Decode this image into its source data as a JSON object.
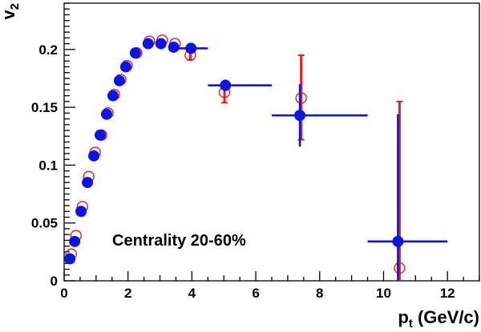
{
  "chart_data": {
    "type": "scatter",
    "title": "",
    "xlabel": "p",
    "xlabel_sub": "t",
    "xlabel_suffix": " (GeV/c)",
    "ylabel": "v",
    "ylabel_sub": "2",
    "xlim": [
      0,
      13
    ],
    "ylim": [
      0,
      0.24
    ],
    "x_ticks": [
      0,
      2,
      4,
      6,
      8,
      10,
      12
    ],
    "x_tick_labels": [
      "0",
      "2",
      "4",
      "6",
      "8",
      "10",
      "12"
    ],
    "y_ticks": [
      0,
      0.05,
      0.1,
      0.15,
      0.2
    ],
    "y_tick_labels": [
      "0",
      "0.05",
      "0.1",
      "0.15",
      "0.2"
    ],
    "grid": false,
    "annotation": "Centrality 20-60%",
    "colors": {
      "filled": "#0a14e6",
      "open": "#e61e1e"
    },
    "series": [
      {
        "marker": "filled-circle",
        "color": "#0a14e6",
        "points": [
          {
            "x": 0.18,
            "y": 0.019
          },
          {
            "x": 0.33,
            "y": 0.034
          },
          {
            "x": 0.53,
            "y": 0.06
          },
          {
            "x": 0.73,
            "y": 0.085
          },
          {
            "x": 0.93,
            "y": 0.108
          },
          {
            "x": 1.13,
            "y": 0.126
          },
          {
            "x": 1.33,
            "y": 0.144
          },
          {
            "x": 1.53,
            "y": 0.16
          },
          {
            "x": 1.73,
            "y": 0.173
          },
          {
            "x": 1.93,
            "y": 0.185
          },
          {
            "x": 2.23,
            "y": 0.197
          },
          {
            "x": 2.63,
            "y": 0.205
          },
          {
            "x": 3.03,
            "y": 0.205
          },
          {
            "x": 3.43,
            "y": 0.202
          },
          {
            "x": 3.97,
            "y": 0.201,
            "xerr": [
              0.47,
              0.53
            ]
          },
          {
            "x": 5.05,
            "y": 0.169,
            "xerr": [
              0.55,
              1.45
            ],
            "yerr": [
              0.005,
              0.005
            ]
          },
          {
            "x": 7.38,
            "y": 0.143,
            "xerr": [
              0.88,
              2.12
            ],
            "yerr": [
              0.027,
              0.027
            ]
          },
          {
            "x": 10.45,
            "y": 0.034,
            "xerr": [
              0.95,
              1.55
            ],
            "yerr": [
              0.034,
              0.11
            ]
          }
        ]
      },
      {
        "marker": "open-circle",
        "color": "#e61e1e",
        "points": [
          {
            "x": 0.22,
            "y": 0.023
          },
          {
            "x": 0.37,
            "y": 0.039
          },
          {
            "x": 0.57,
            "y": 0.064
          },
          {
            "x": 0.77,
            "y": 0.09
          },
          {
            "x": 0.97,
            "y": 0.111
          },
          {
            "x": 1.17,
            "y": 0.126
          },
          {
            "x": 1.37,
            "y": 0.145
          },
          {
            "x": 1.57,
            "y": 0.161
          },
          {
            "x": 1.77,
            "y": 0.174
          },
          {
            "x": 1.97,
            "y": 0.186
          },
          {
            "x": 2.27,
            "y": 0.197
          },
          {
            "x": 2.67,
            "y": 0.207
          },
          {
            "x": 3.07,
            "y": 0.208
          },
          {
            "x": 3.47,
            "y": 0.205
          },
          {
            "x": 3.95,
            "y": 0.195,
            "yerr": [
              0.004,
              0.004
            ]
          },
          {
            "x": 5.02,
            "y": 0.163,
            "yerr": [
              0.009,
              0.009
            ]
          },
          {
            "x": 7.42,
            "y": 0.158,
            "yerr": [
              0.036,
              0.037
            ]
          },
          {
            "x": 10.5,
            "y": 0.011,
            "yerr": [
              0.011,
              0.144
            ]
          }
        ]
      }
    ]
  }
}
